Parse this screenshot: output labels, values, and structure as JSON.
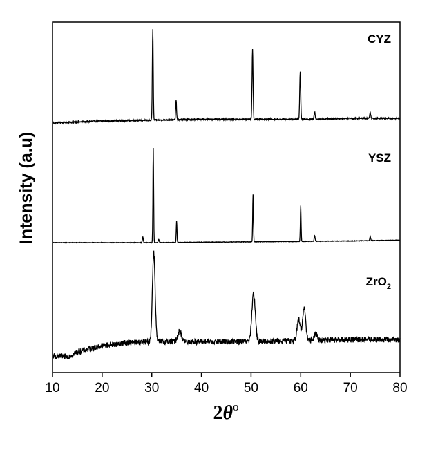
{
  "chart_data": {
    "type": "line",
    "title": "",
    "xlabel": "2θ°",
    "xlabel_parts": {
      "main": "2",
      "theta": "θ",
      "deg": "o"
    },
    "ylabel": "Intensity (a.u)",
    "xlim": [
      10,
      80
    ],
    "xticks": [
      10,
      20,
      30,
      40,
      50,
      60,
      70,
      80
    ],
    "yticks": [],
    "grid": false,
    "legend": "none",
    "line_color": "#000000",
    "series": [
      {
        "name": "CYZ",
        "name_main": "CYZ",
        "name_sub": "",
        "baseline": [
          [
            10,
            0.04
          ],
          [
            20,
            0.06
          ],
          [
            30,
            0.07
          ],
          [
            40,
            0.08
          ],
          [
            50,
            0.08
          ],
          [
            60,
            0.08
          ],
          [
            70,
            0.09
          ],
          [
            80,
            0.09
          ]
        ],
        "peaks": [
          {
            "x": 30.2,
            "height": 1.0,
            "width": 0.18
          },
          {
            "x": 34.9,
            "height": 0.22,
            "width": 0.18
          },
          {
            "x": 50.3,
            "height": 0.78,
            "width": 0.2
          },
          {
            "x": 59.9,
            "height": 0.53,
            "width": 0.2
          },
          {
            "x": 62.8,
            "height": 0.08,
            "width": 0.2
          },
          {
            "x": 74.0,
            "height": 0.07,
            "width": 0.2
          }
        ],
        "noise": 0.008
      },
      {
        "name": "YSZ",
        "name_main": "YSZ",
        "name_sub": "",
        "baseline": [
          [
            10,
            0.0
          ],
          [
            30,
            0.0
          ],
          [
            50,
            0.01
          ],
          [
            70,
            0.02
          ],
          [
            80,
            0.03
          ]
        ],
        "peaks": [
          {
            "x": 28.2,
            "height": 0.07,
            "width": 0.18
          },
          {
            "x": 30.3,
            "height": 1.14,
            "width": 0.15
          },
          {
            "x": 31.4,
            "height": 0.04,
            "width": 0.18
          },
          {
            "x": 35.0,
            "height": 0.26,
            "width": 0.15
          },
          {
            "x": 50.4,
            "height": 0.57,
            "width": 0.15
          },
          {
            "x": 60.0,
            "height": 0.43,
            "width": 0.15
          },
          {
            "x": 62.8,
            "height": 0.07,
            "width": 0.18
          },
          {
            "x": 74.0,
            "height": 0.05,
            "width": 0.18
          }
        ],
        "noise": 0.003
      },
      {
        "name": "ZrO2",
        "name_main": "ZrO",
        "name_sub": "2",
        "baseline": [
          [
            10,
            0.0
          ],
          [
            13,
            -0.01
          ],
          [
            15,
            0.04
          ],
          [
            20,
            0.1
          ],
          [
            25,
            0.13
          ],
          [
            30,
            0.14
          ],
          [
            40,
            0.14
          ],
          [
            50,
            0.14
          ],
          [
            60,
            0.15
          ],
          [
            70,
            0.16
          ],
          [
            80,
            0.16
          ]
        ],
        "peaks": [
          {
            "x": 30.4,
            "height": 0.87,
            "width": 0.55
          },
          {
            "x": 35.6,
            "height": 0.1,
            "width": 0.8
          },
          {
            "x": 50.5,
            "height": 0.46,
            "width": 0.7
          },
          {
            "x": 59.6,
            "height": 0.2,
            "width": 0.7
          },
          {
            "x": 60.7,
            "height": 0.33,
            "width": 0.6
          },
          {
            "x": 63.0,
            "height": 0.07,
            "width": 0.6
          }
        ],
        "noise": 0.028
      }
    ]
  }
}
